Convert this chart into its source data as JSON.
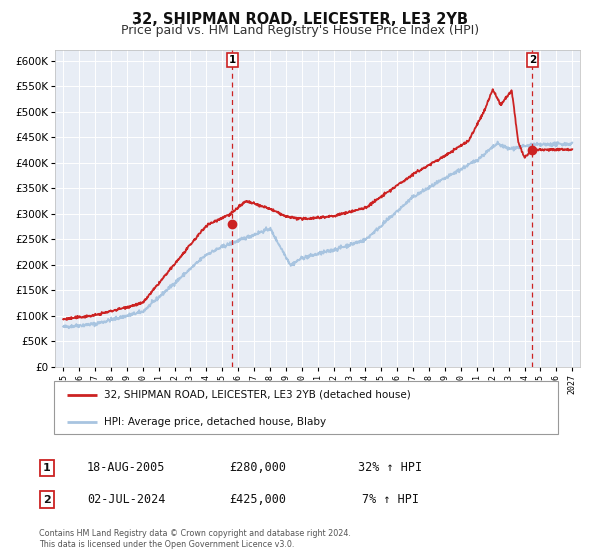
{
  "title": "32, SHIPMAN ROAD, LEICESTER, LE3 2YB",
  "subtitle": "Price paid vs. HM Land Registry's House Price Index (HPI)",
  "ylim": [
    0,
    620000
  ],
  "xlim_start": 1994.5,
  "xlim_end": 2027.5,
  "yticks": [
    0,
    50000,
    100000,
    150000,
    200000,
    250000,
    300000,
    350000,
    400000,
    450000,
    500000,
    550000,
    600000
  ],
  "ytick_labels": [
    "£0",
    "£50K",
    "£100K",
    "£150K",
    "£200K",
    "£250K",
    "£300K",
    "£350K",
    "£400K",
    "£450K",
    "£500K",
    "£550K",
    "£600K"
  ],
  "xtick_years": [
    1995,
    1996,
    1997,
    1998,
    1999,
    2000,
    2001,
    2002,
    2003,
    2004,
    2005,
    2006,
    2007,
    2008,
    2009,
    2010,
    2011,
    2012,
    2013,
    2014,
    2015,
    2016,
    2017,
    2018,
    2019,
    2020,
    2021,
    2022,
    2023,
    2024,
    2025,
    2026,
    2027
  ],
  "hpi_color": "#a8c4e0",
  "price_color": "#cc2222",
  "background_color": "#ffffff",
  "plot_bg_color": "#e8edf5",
  "grid_color": "#ffffff",
  "marker1_x": 2005.63,
  "marker1_y": 280000,
  "marker2_x": 2024.5,
  "marker2_y": 425000,
  "vline1_x": 2005.63,
  "vline2_x": 2024.5,
  "legend_price_label": "32, SHIPMAN ROAD, LEICESTER, LE3 2YB (detached house)",
  "legend_hpi_label": "HPI: Average price, detached house, Blaby",
  "table_row1": [
    "1",
    "18-AUG-2005",
    "£280,000",
    "32% ↑ HPI"
  ],
  "table_row2": [
    "2",
    "02-JUL-2024",
    "£425,000",
    "7% ↑ HPI"
  ],
  "footer1": "Contains HM Land Registry data © Crown copyright and database right 2024.",
  "footer2": "This data is licensed under the Open Government Licence v3.0.",
  "title_fontsize": 10.5,
  "subtitle_fontsize": 9.0
}
